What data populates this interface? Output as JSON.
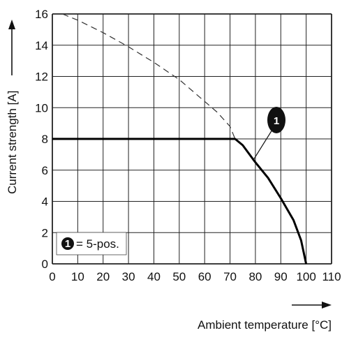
{
  "chart_data": {
    "type": "line",
    "xlabel": "Ambient temperature [°C]",
    "ylabel": "Current strength [A]",
    "xlim": [
      0,
      110
    ],
    "ylim": [
      0,
      16
    ],
    "x_ticks": [
      0,
      10,
      20,
      30,
      40,
      50,
      60,
      70,
      80,
      90,
      100,
      110
    ],
    "y_ticks": [
      0,
      2,
      4,
      6,
      8,
      10,
      12,
      14,
      16
    ],
    "x_tick_labels": [
      "0",
      "10",
      "20",
      "30",
      "40",
      "50",
      "60",
      "70",
      "80",
      "90",
      "100",
      "110"
    ],
    "y_tick_labels": [
      "0",
      "2",
      "4",
      "6",
      "8",
      "10",
      "12",
      "14",
      "16"
    ],
    "grid": true,
    "series": [
      {
        "style": "dashed",
        "color": "#333333",
        "x": [
          4,
          10,
          20,
          30,
          40,
          50,
          60,
          65,
          70,
          72
        ],
        "y": [
          16,
          15.6,
          14.8,
          13.9,
          12.9,
          11.8,
          10.4,
          9.7,
          8.8,
          8
        ]
      },
      {
        "style": "solid-thick",
        "color": "#000000",
        "x": [
          0,
          72,
          75,
          80,
          85,
          90,
          95,
          98,
          100
        ],
        "y": [
          8,
          8,
          7.6,
          6.5,
          5.5,
          4.2,
          2.8,
          1.5,
          0
        ]
      }
    ],
    "annotation": {
      "label": "1",
      "target_x": 79,
      "target_y": 6.6
    },
    "legend": {
      "marker": "1",
      "text": "= 5-pos.",
      "position": "bottom-left"
    }
  }
}
